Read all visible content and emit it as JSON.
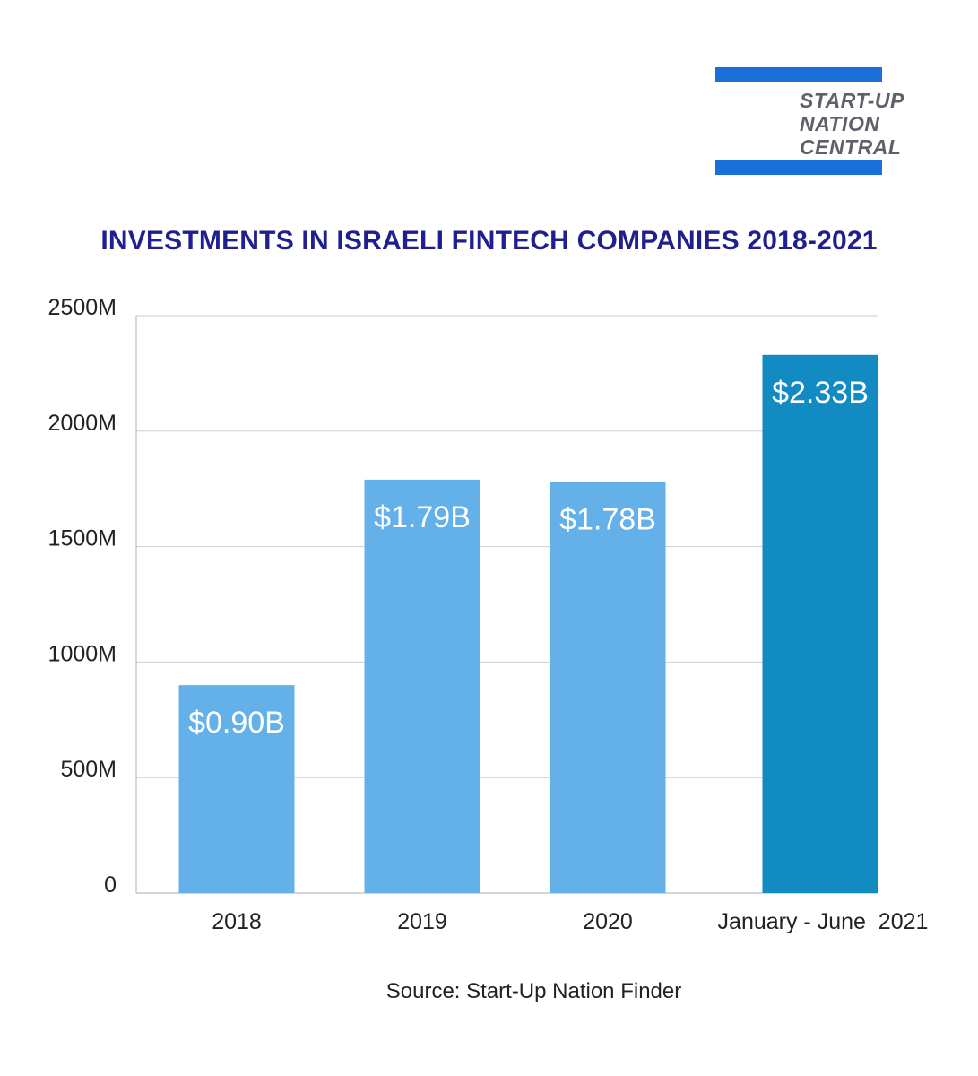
{
  "logo": {
    "lines": [
      "START-UP",
      "NATION",
      "CENTRAL"
    ],
    "bar_color": "#1a6fd8"
  },
  "chart_data": {
    "type": "bar",
    "title": "INVESTMENTS IN ISRAELI FINTECH COMPANIES 2018-2021",
    "categories": [
      "2018",
      "2019",
      "2020",
      "January - June  2021"
    ],
    "values": [
      900,
      1790,
      1780,
      2330
    ],
    "data_labels": [
      "$0.90B",
      "$1.79B",
      "$1.78B",
      "$2.33B"
    ],
    "bar_colors": [
      "#64b1ea",
      "#64b1ea",
      "#64b1ea",
      "#128bc2"
    ],
    "ylim": [
      0,
      2500
    ],
    "yticks": [
      0,
      500,
      1000,
      1500,
      2000,
      2500
    ],
    "ytick_labels": [
      "0",
      "500M",
      "1000M",
      "1500M",
      "2000M",
      "2500M"
    ],
    "grid": true,
    "xlabel": "",
    "ylabel": ""
  },
  "source": "Source: Start-Up Nation Finder"
}
